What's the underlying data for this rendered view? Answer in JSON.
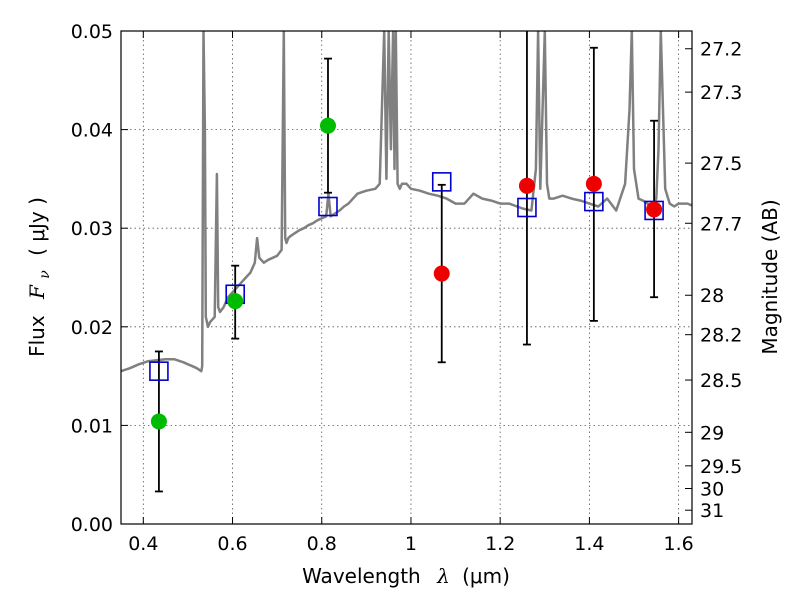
{
  "chart_data": {
    "type": "scatter",
    "xlabel": {
      "text": "Wavelength",
      "symbol": "λ",
      "unit": "(μm)"
    },
    "ylabel": {
      "text": "Flux",
      "symbol": "F",
      "subscript": "ν",
      "unit": "( μJy )"
    },
    "y2label": "Magnitude (AB)",
    "xlim": [
      0.35,
      1.63
    ],
    "ylim": [
      0.0,
      0.05
    ],
    "grid": true,
    "xticks": [
      0.4,
      0.6,
      0.8,
      1.0,
      1.2,
      1.4,
      1.6
    ],
    "xtick_labels": [
      "0.4",
      "0.6",
      "0.8",
      "1",
      "1.2",
      "1.4",
      "1.6"
    ],
    "yticks": [
      0.0,
      0.01,
      0.02,
      0.03,
      0.04,
      0.05
    ],
    "ytick_labels": [
      "0.00",
      "0.01",
      "0.02",
      "0.03",
      "0.04",
      "0.05"
    ],
    "mag_ticks": [
      {
        "label": "27.2",
        "flux": 0.0482
      },
      {
        "label": "27.3",
        "flux": 0.0438
      },
      {
        "label": "27.5",
        "flux": 0.0366
      },
      {
        "label": "27.7",
        "flux": 0.0305
      },
      {
        "label": "28",
        "flux": 0.0232
      },
      {
        "label": "28.2",
        "flux": 0.0192
      },
      {
        "label": "28.5",
        "flux": 0.0146
      },
      {
        "label": "29",
        "flux": 0.0093
      },
      {
        "label": "29.5",
        "flux": 0.0059
      },
      {
        "label": "30",
        "flux": 0.0036
      },
      {
        "label": "31",
        "flux": 0.0014
      }
    ],
    "series": [
      {
        "name": "model-spectrum",
        "style": "line",
        "color": "#808080",
        "x": [
          0.35,
          0.37,
          0.39,
          0.41,
          0.43,
          0.45,
          0.47,
          0.49,
          0.5,
          0.51,
          0.52,
          0.53,
          0.532,
          0.535,
          0.538,
          0.54,
          0.545,
          0.55,
          0.56,
          0.565,
          0.568,
          0.572,
          0.58,
          0.59,
          0.6,
          0.61,
          0.62,
          0.63,
          0.64,
          0.65,
          0.655,
          0.66,
          0.67,
          0.68,
          0.69,
          0.7,
          0.71,
          0.715,
          0.718,
          0.721,
          0.725,
          0.73,
          0.74,
          0.75,
          0.76,
          0.77,
          0.78,
          0.79,
          0.8,
          0.81,
          0.815,
          0.82,
          0.83,
          0.84,
          0.85,
          0.86,
          0.87,
          0.88,
          0.9,
          0.92,
          0.93,
          0.94,
          0.945,
          0.95,
          0.955,
          0.96,
          0.963,
          0.966,
          0.97,
          0.975,
          0.98,
          0.99,
          1.0,
          1.02,
          1.04,
          1.06,
          1.08,
          1.1,
          1.12,
          1.14,
          1.16,
          1.18,
          1.2,
          1.22,
          1.25,
          1.27,
          1.28,
          1.285,
          1.29,
          1.3,
          1.305,
          1.31,
          1.32,
          1.34,
          1.36,
          1.38,
          1.4,
          1.42,
          1.44,
          1.46,
          1.48,
          1.49,
          1.495,
          1.5,
          1.51,
          1.52,
          1.53,
          1.54,
          1.55,
          1.555,
          1.56,
          1.57,
          1.58,
          1.59,
          1.6,
          1.62,
          1.63
        ],
        "y": [
          0.0155,
          0.0158,
          0.0162,
          0.0165,
          0.0166,
          0.0167,
          0.0167,
          0.0164,
          0.0162,
          0.016,
          0.0158,
          0.0155,
          0.016,
          0.05,
          0.04,
          0.021,
          0.02,
          0.0205,
          0.021,
          0.0355,
          0.022,
          0.0215,
          0.022,
          0.023,
          0.0235,
          0.024,
          0.0245,
          0.025,
          0.0255,
          0.0265,
          0.029,
          0.027,
          0.0265,
          0.0268,
          0.027,
          0.0272,
          0.0278,
          0.05,
          0.029,
          0.0285,
          0.029,
          0.0292,
          0.0295,
          0.0298,
          0.03,
          0.0303,
          0.0305,
          0.0308,
          0.031,
          0.0312,
          0.0335,
          0.0312,
          0.0315,
          0.0318,
          0.0322,
          0.0325,
          0.033,
          0.0335,
          0.0338,
          0.034,
          0.0345,
          0.05,
          0.035,
          0.05,
          0.038,
          0.05,
          0.036,
          0.05,
          0.0345,
          0.034,
          0.0345,
          0.0345,
          0.034,
          0.0338,
          0.0335,
          0.0333,
          0.033,
          0.0325,
          0.0325,
          0.0335,
          0.033,
          0.0328,
          0.0325,
          0.0325,
          0.032,
          0.0318,
          0.036,
          0.05,
          0.034,
          0.05,
          0.0345,
          0.033,
          0.033,
          0.0333,
          0.033,
          0.0328,
          0.0325,
          0.0322,
          0.033,
          0.0318,
          0.0345,
          0.042,
          0.05,
          0.036,
          0.033,
          0.0328,
          0.0325,
          0.0322,
          0.033,
          0.038,
          0.05,
          0.034,
          0.0325,
          0.0322,
          0.0325,
          0.0325,
          0.0323
        ]
      },
      {
        "name": "model-bandpass-fluxes",
        "style": "open-square",
        "color": "#0000cc",
        "x": [
          0.435,
          0.606,
          0.814,
          1.069,
          1.26,
          1.41,
          1.545
        ],
        "y": [
          0.0155,
          0.0233,
          0.0322,
          0.0347,
          0.0321,
          0.0327,
          0.0318
        ]
      },
      {
        "name": "green-points",
        "style": "filled-circle",
        "color": "#00bb00",
        "x": [
          0.435,
          0.606,
          0.814
        ],
        "y": [
          0.0104,
          0.0226,
          0.0404
        ],
        "yerr_low": [
          0.0033,
          0.0188,
          0.0336
        ],
        "yerr_high": [
          0.0175,
          0.0262,
          0.0472
        ]
      },
      {
        "name": "red-points",
        "style": "filled-circle",
        "color": "#ee0000",
        "x": [
          1.069,
          1.26,
          1.41,
          1.545
        ],
        "y": [
          0.0254,
          0.0343,
          0.0345,
          0.0319
        ],
        "yerr_low": [
          0.0164,
          0.0182,
          0.0206,
          0.023
        ],
        "yerr_high": [
          0.0344,
          0.0503,
          0.0483,
          0.0409
        ]
      }
    ]
  }
}
